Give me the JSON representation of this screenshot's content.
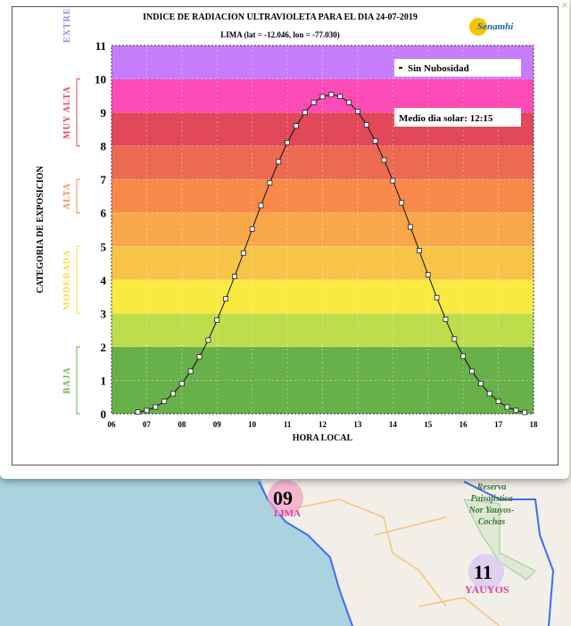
{
  "popup": {
    "close_icon": "×"
  },
  "map": {
    "markers": [
      {
        "value": "09",
        "name": "LIMA",
        "color": "#e040a0"
      },
      {
        "value": "11",
        "name": "YAUYOS",
        "color": "#e040a0"
      }
    ],
    "park_label": [
      "Reserva",
      "Paisajística",
      "Nor Yauyos-",
      "Cochas"
    ]
  },
  "chart_data": {
    "type": "line",
    "title": "INDICE DE RADIACION ULTRAVIOLETA PARA EL DIA 24-07-2019",
    "subtitle": "LIMA (lat = -12.046, lon = -77.030)",
    "logo": "Senamhi",
    "xlabel": "HORA LOCAL",
    "ylabel": "CATEGORIA DE EXPOSICION",
    "xlim": [
      6,
      18
    ],
    "ylim": [
      0,
      11
    ],
    "xticks": [
      "06",
      "07",
      "08",
      "09",
      "10",
      "11",
      "12",
      "13",
      "14",
      "15",
      "16",
      "17",
      "18"
    ],
    "yticks": [
      "0",
      "1",
      "2",
      "3",
      "4",
      "5",
      "6",
      "7",
      "8",
      "9",
      "10",
      "11"
    ],
    "grid": true,
    "legend": {
      "label": "Sin Nubosidad",
      "placement": "top-right"
    },
    "annotation": "Medio dia solar: 12:15",
    "bands": [
      {
        "from": 0,
        "to": 1,
        "color": "#68b04a"
      },
      {
        "from": 1,
        "to": 2,
        "color": "#68b04a"
      },
      {
        "from": 2,
        "to": 3,
        "color": "#bedd4c"
      },
      {
        "from": 3,
        "to": 4,
        "color": "#f9ea42"
      },
      {
        "from": 4,
        "to": 5,
        "color": "#f8c448"
      },
      {
        "from": 5,
        "to": 6,
        "color": "#f8a848"
      },
      {
        "from": 6,
        "to": 7,
        "color": "#f78a48"
      },
      {
        "from": 7,
        "to": 8,
        "color": "#ec6a52"
      },
      {
        "from": 8,
        "to": 9,
        "color": "#e1485a"
      },
      {
        "from": 9,
        "to": 10,
        "color": "#fc4bb4"
      },
      {
        "from": 10,
        "to": 11,
        "color": "#c77cfb"
      }
    ],
    "categories": [
      {
        "label": "BAJA",
        "from": 0,
        "to": 2,
        "color": "#68b04a"
      },
      {
        "label": "MODERADA",
        "from": 3,
        "to": 5,
        "color": "#f5e040"
      },
      {
        "label": "ALTA",
        "from": 6,
        "to": 7,
        "color": "#f78a48"
      },
      {
        "label": "MUY ALTA",
        "from": 8,
        "to": 10,
        "color": "#e1485a"
      },
      {
        "label": "EXTREMADAMENTE",
        "from": 11,
        "to": 11,
        "color": "#8a8af0"
      }
    ],
    "series": [
      {
        "name": "Sin Nubosidad",
        "x": [
          6.75,
          7,
          7.25,
          7.5,
          7.75,
          8,
          8.25,
          8.5,
          8.75,
          9,
          9.25,
          9.5,
          9.75,
          10,
          10.25,
          10.5,
          10.75,
          11,
          11.25,
          11.5,
          11.75,
          12,
          12.25,
          12.5,
          12.75,
          13,
          13.25,
          13.5,
          13.75,
          14,
          14.25,
          14.5,
          14.75,
          15,
          15.25,
          15.5,
          15.75,
          16,
          16.25,
          16.5,
          16.75,
          17,
          17.25,
          17.5,
          17.75
        ],
        "y": [
          0.05,
          0.1,
          0.2,
          0.37,
          0.6,
          0.9,
          1.27,
          1.7,
          2.2,
          2.8,
          3.43,
          4.1,
          4.8,
          5.52,
          6.22,
          6.9,
          7.53,
          8.1,
          8.6,
          9.0,
          9.3,
          9.47,
          9.53,
          9.48,
          9.3,
          9.03,
          8.63,
          8.15,
          7.58,
          6.96,
          6.3,
          5.58,
          4.87,
          4.15,
          3.47,
          2.82,
          2.23,
          1.72,
          1.27,
          0.9,
          0.6,
          0.37,
          0.2,
          0.1,
          0.04
        ]
      }
    ]
  }
}
